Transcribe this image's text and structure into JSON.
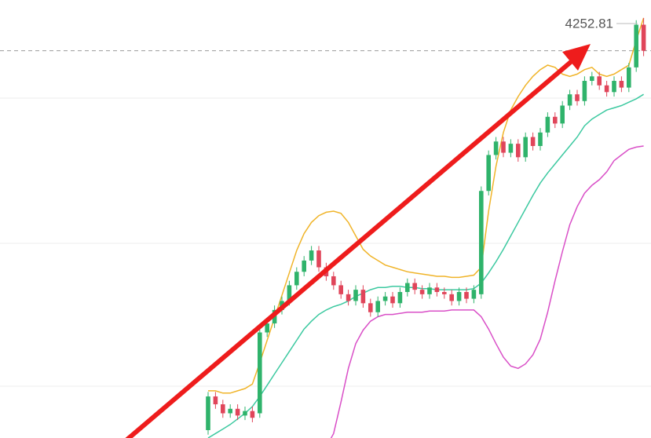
{
  "chart_data": {
    "type": "candlestick",
    "ylim": [
      3908,
      4298
    ],
    "last_price": 4252.81,
    "up_color": "#2fb36b",
    "down_color": "#e0455a",
    "candles": [
      [
        3915,
        3949,
        3911,
        3945
      ],
      [
        3945,
        3949,
        3934,
        3938
      ],
      [
        3938,
        3942,
        3926,
        3930
      ],
      [
        3930,
        3938,
        3926,
        3934
      ],
      [
        3934,
        3938,
        3924,
        3928
      ],
      [
        3928,
        3936,
        3924,
        3932
      ],
      [
        3932,
        3936,
        3922,
        3926
      ],
      [
        3930,
        4006,
        3926,
        4002
      ],
      [
        4002,
        4014,
        3998,
        4010
      ],
      [
        4010,
        4026,
        4006,
        4022
      ],
      [
        4022,
        4034,
        4018,
        4030
      ],
      [
        4030,
        4048,
        4026,
        4044
      ],
      [
        4044,
        4060,
        4040,
        4056
      ],
      [
        4056,
        4070,
        4052,
        4066
      ],
      [
        4066,
        4079,
        4062,
        4075
      ],
      [
        4075,
        4079,
        4056,
        4060
      ],
      [
        4060,
        4064,
        4048,
        4052
      ],
      [
        4052,
        4056,
        4040,
        4044
      ],
      [
        4044,
        4048,
        4032,
        4036
      ],
      [
        4036,
        4040,
        4026,
        4030
      ],
      [
        4030,
        4044,
        4026,
        4040
      ],
      [
        4040,
        4044,
        4024,
        4028
      ],
      [
        4028,
        4032,
        4016,
        4020
      ],
      [
        4020,
        4034,
        4016,
        4030
      ],
      [
        4030,
        4038,
        4026,
        4034
      ],
      [
        4034,
        4038,
        4024,
        4028
      ],
      [
        4028,
        4042,
        4024,
        4038
      ],
      [
        4038,
        4050,
        4034,
        4046
      ],
      [
        4046,
        4050,
        4036,
        4040
      ],
      [
        4040,
        4044,
        4032,
        4036
      ],
      [
        4036,
        4046,
        4032,
        4042
      ],
      [
        4042,
        4046,
        4034,
        4038
      ],
      [
        4038,
        4042,
        4032,
        4036
      ],
      [
        4036,
        4040,
        4026,
        4030
      ],
      [
        4030,
        4042,
        4026,
        4038
      ],
      [
        4038,
        4042,
        4028,
        4032
      ],
      [
        4032,
        4044,
        4028,
        4040
      ],
      [
        4036,
        4132,
        4032,
        4128
      ],
      [
        4128,
        4164,
        4124,
        4160
      ],
      [
        4160,
        4176,
        4156,
        4172
      ],
      [
        4172,
        4176,
        4158,
        4162
      ],
      [
        4162,
        4174,
        4158,
        4170
      ],
      [
        4170,
        4174,
        4154,
        4158
      ],
      [
        4158,
        4180,
        4154,
        4176
      ],
      [
        4176,
        4180,
        4164,
        4168
      ],
      [
        4168,
        4184,
        4164,
        4180
      ],
      [
        4180,
        4198,
        4176,
        4194
      ],
      [
        4194,
        4198,
        4184,
        4188
      ],
      [
        4188,
        4208,
        4184,
        4204
      ],
      [
        4204,
        4218,
        4200,
        4214
      ],
      [
        4214,
        4218,
        4204,
        4208
      ],
      [
        4208,
        4230,
        4204,
        4226
      ],
      [
        4226,
        4234,
        4222,
        4230
      ],
      [
        4230,
        4234,
        4218,
        4222
      ],
      [
        4222,
        4226,
        4212,
        4216
      ],
      [
        4216,
        4230,
        4212,
        4226
      ],
      [
        4226,
        4230,
        4216,
        4220
      ],
      [
        4220,
        4242,
        4216,
        4238
      ],
      [
        4238,
        4280,
        4234,
        4276
      ],
      [
        4276,
        4282,
        4248,
        4252.81
      ]
    ],
    "series": [
      {
        "color": "#f0b429",
        "values": [
          3950,
          3950,
          3948,
          3948,
          3950,
          3952,
          3956,
          3975,
          3995,
          4015,
          4035,
          4055,
          4075,
          4090,
          4100,
          4106,
          4109,
          4110,
          4108,
          4100,
          4088,
          4076,
          4070,
          4066,
          4062,
          4060,
          4058,
          4056,
          4055,
          4054,
          4053,
          4052,
          4052,
          4051,
          4051,
          4052,
          4053,
          4060,
          4110,
          4150,
          4180,
          4200,
          4212,
          4222,
          4230,
          4236,
          4240,
          4238,
          4232,
          4230,
          4232,
          4236,
          4238,
          4232,
          4230,
          4232,
          4236,
          4240,
          4262,
          4282
        ]
      },
      {
        "color": "#3cc9a0",
        "values": [
          3908,
          3912,
          3916,
          3920,
          3925,
          3930,
          3936,
          3945,
          3955,
          3965,
          3975,
          3985,
          3995,
          4005,
          4012,
          4018,
          4022,
          4025,
          4027,
          4030,
          4034,
          4037,
          4040,
          4042,
          4042,
          4043,
          4043,
          4042,
          4042,
          4041,
          4041,
          4040,
          4040,
          4040,
          4040,
          4040,
          4041,
          4046,
          4055,
          4065,
          4076,
          4088,
          4100,
          4112,
          4124,
          4135,
          4144,
          4152,
          4160,
          4168,
          4176,
          4186,
          4192,
          4196,
          4200,
          4202,
          4204,
          4207,
          4210,
          4214
        ]
      },
      {
        "color": "#d94fc7",
        "values": [
          null,
          null,
          null,
          null,
          null,
          null,
          null,
          null,
          null,
          null,
          null,
          null,
          null,
          null,
          null,
          null,
          3900,
          3912,
          3940,
          3970,
          3992,
          4004,
          4012,
          4016,
          4018,
          4018,
          4019,
          4020,
          4020,
          4020,
          4021,
          4021,
          4021,
          4022,
          4022,
          4022,
          4022,
          4016,
          4005,
          3992,
          3980,
          3972,
          3970,
          3974,
          3982,
          3996,
          4020,
          4048,
          4074,
          4098,
          4114,
          4126,
          4133,
          4138,
          4145,
          4155,
          4160,
          4165,
          4167,
          4168
        ]
      }
    ]
  }
}
